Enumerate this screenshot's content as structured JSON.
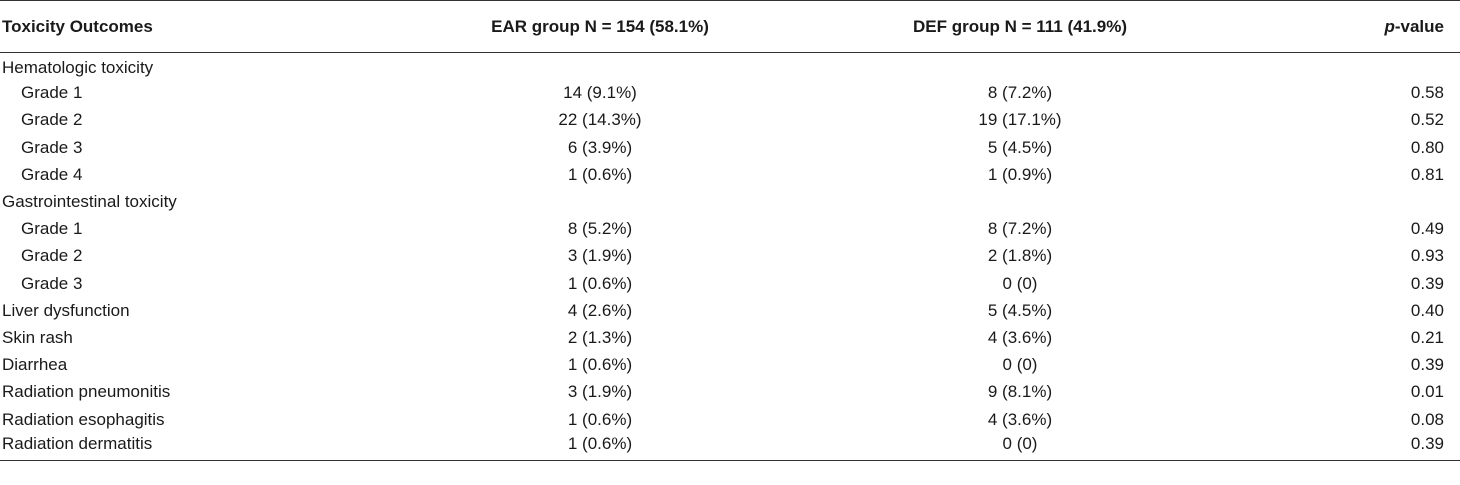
{
  "table": {
    "headers": {
      "outcome": "Toxicity Outcomes",
      "ear": "EAR group N = 154 (58.1%)",
      "def": "DEF group N = 111 (41.9%)",
      "p_italic": "p",
      "p_rest": "-value"
    },
    "rows": [
      {
        "label": "Hematologic toxicity",
        "ear": "",
        "def": "",
        "p": ""
      },
      {
        "label": "Grade 1",
        "ear": "14 (9.1%)",
        "def": "8 (7.2%)",
        "p": "0.58"
      },
      {
        "label": "Grade 2",
        "ear": "22 (14.3%)",
        "def": "19 (17.1%)",
        "p": "0.52"
      },
      {
        "label": "Grade 3",
        "ear": "6 (3.9%)",
        "def": "5 (4.5%)",
        "p": "0.80"
      },
      {
        "label": "Grade 4",
        "ear": "1 (0.6%)",
        "def": "1 (0.9%)",
        "p": "0.81"
      },
      {
        "label": "Gastrointestinal toxicity",
        "ear": "",
        "def": "",
        "p": ""
      },
      {
        "label": "Grade 1",
        "ear": "8 (5.2%)",
        "def": "8 (7.2%)",
        "p": "0.49"
      },
      {
        "label": "Grade 2",
        "ear": "3 (1.9%)",
        "def": "2 (1.8%)",
        "p": "0.93"
      },
      {
        "label": "Grade 3",
        "ear": "1 (0.6%)",
        "def": "0 (0)",
        "p": "0.39"
      },
      {
        "label": "Liver dysfunction",
        "ear": "4 (2.6%)",
        "def": "5 (4.5%)",
        "p": "0.40"
      },
      {
        "label": "Skin rash",
        "ear": "2 (1.3%)",
        "def": "4 (3.6%)",
        "p": "0.21"
      },
      {
        "label": "Diarrhea",
        "ear": "1 (0.6%)",
        "def": "0 (0)",
        "p": "0.39"
      },
      {
        "label": "Radiation pneumonitis",
        "ear": "3 (1.9%)",
        "def": "9 (8.1%)",
        "p": "0.01"
      },
      {
        "label": "Radiation esophagitis",
        "ear": "1 (0.6%)",
        "def": "4 (3.6%)",
        "p": "0.08"
      },
      {
        "label": "Radiation dermatitis",
        "ear": "1 (0.6%)",
        "def": "0 (0)",
        "p": "0.39"
      }
    ]
  }
}
